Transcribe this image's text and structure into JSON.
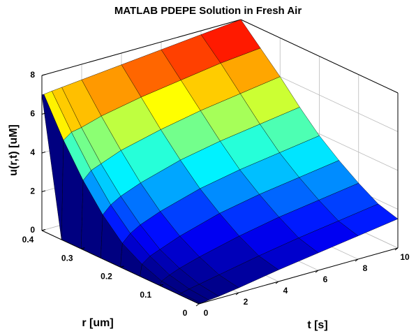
{
  "chart_data": {
    "type": "surface",
    "title": "MATLAB PDEPE Solution in Fresh Air",
    "xlabel": "t [s]",
    "ylabel": "r [um]",
    "zlabel": "u(r,t) [uM]",
    "x": [
      0,
      0.1,
      0.5,
      1,
      2,
      4,
      6,
      8,
      10
    ],
    "y": [
      0,
      0.05,
      0.1,
      0.15,
      0.2,
      0.25,
      0.3,
      0.35,
      0.4
    ],
    "z": [
      [
        0,
        0,
        0,
        0,
        0,
        0,
        0,
        0,
        7
      ],
      [
        0,
        0.05,
        0.2,
        0.6,
        1.2,
        2.2,
        3.5,
        5.1,
        7
      ],
      [
        0.05,
        0.15,
        0.4,
        0.9,
        1.6,
        2.6,
        3.9,
        5.4,
        7.05
      ],
      [
        0.1,
        0.25,
        0.6,
        1.1,
        1.9,
        2.9,
        4.1,
        5.5,
        7.1
      ],
      [
        0.25,
        0.45,
        0.9,
        1.5,
        2.3,
        3.3,
        4.5,
        5.8,
        7.2
      ],
      [
        0.6,
        0.85,
        1.4,
        2.1,
        2.9,
        3.9,
        5.0,
        6.2,
        7.4
      ],
      [
        0.9,
        1.2,
        1.8,
        2.5,
        3.3,
        4.3,
        5.4,
        6.5,
        7.6
      ],
      [
        1.2,
        1.5,
        2.1,
        2.8,
        3.6,
        4.6,
        5.7,
        6.8,
        7.8
      ],
      [
        1.5,
        1.8,
        2.4,
        3.1,
        3.9,
        4.9,
        6.0,
        7.0,
        8.0
      ]
    ],
    "xlim": [
      0,
      10
    ],
    "xticks": [
      0,
      2,
      4,
      6,
      8,
      10
    ],
    "ylim": [
      0,
      0.4
    ],
    "yticks": [
      0,
      0.1,
      0.2,
      0.3,
      0.4
    ],
    "zlim": [
      0,
      8
    ],
    "zticks": [
      0,
      2,
      4,
      6,
      8
    ],
    "colormap": "jet",
    "grid": true
  }
}
